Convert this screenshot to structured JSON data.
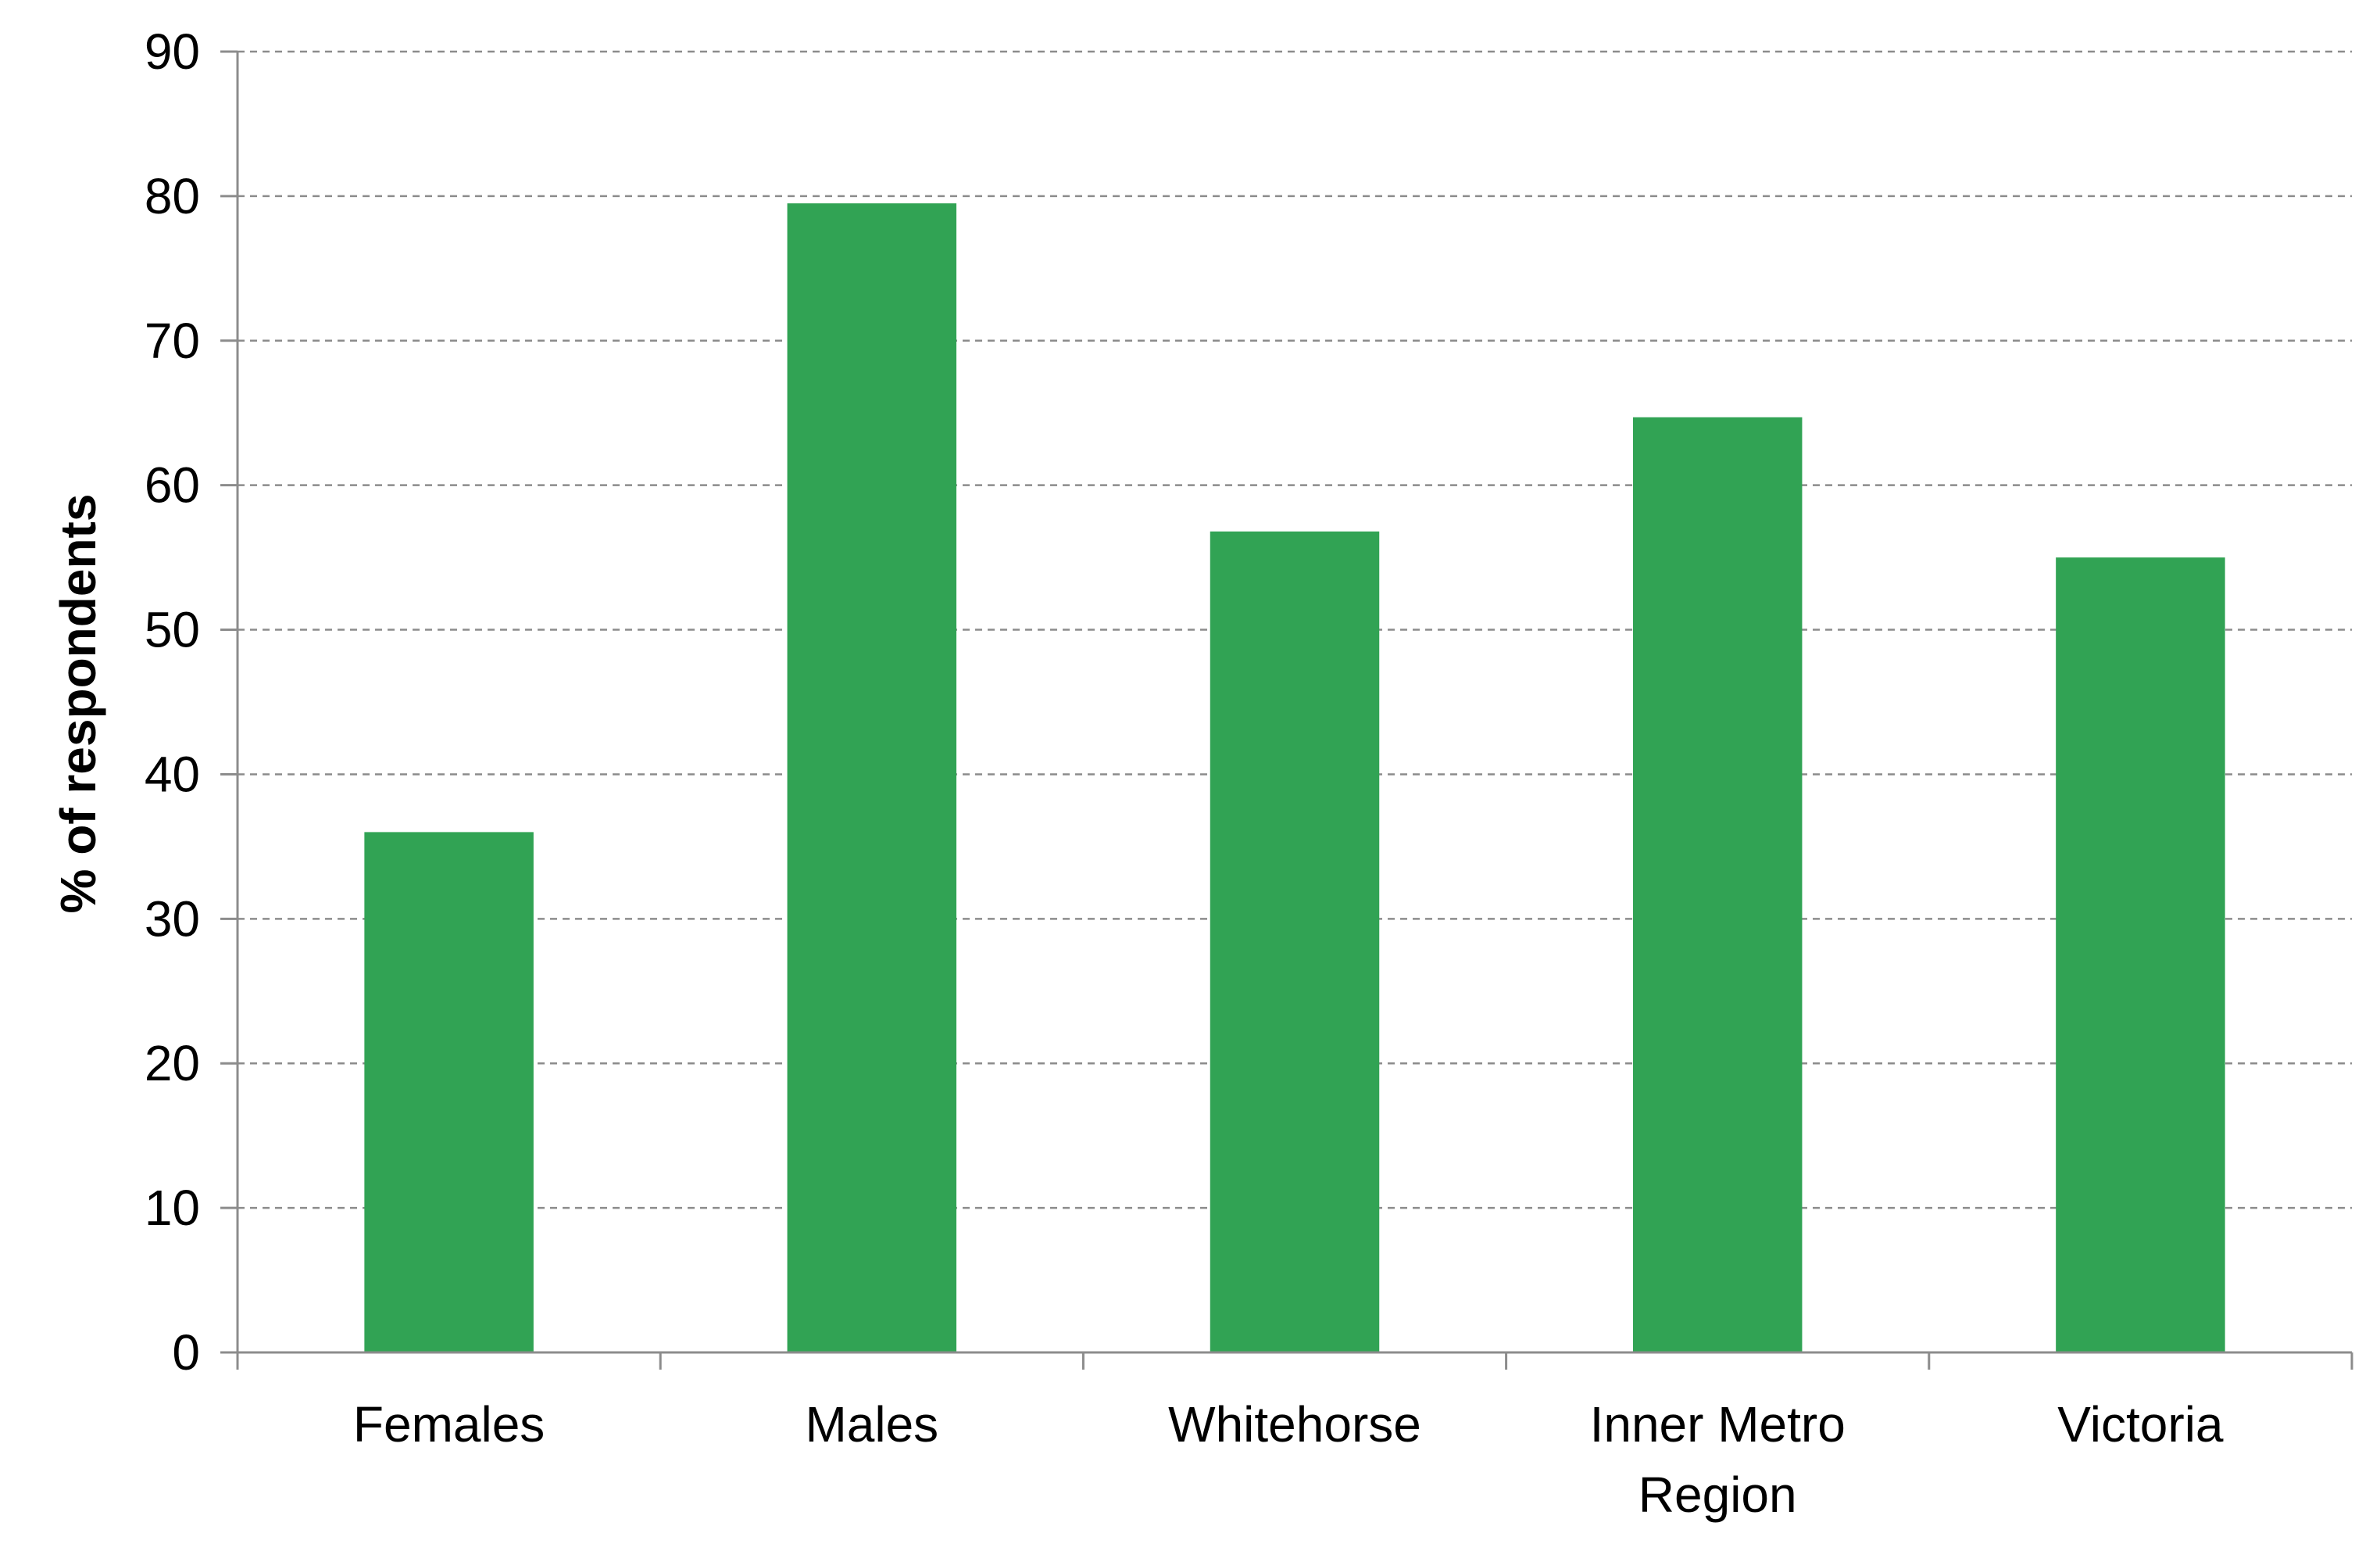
{
  "chart_data": {
    "type": "bar",
    "title": "",
    "xlabel": "",
    "ylabel": "% of respondents",
    "categories": [
      [
        "Females"
      ],
      [
        "Males"
      ],
      [
        "Whitehorse"
      ],
      [
        "Inner Metro",
        "Region"
      ],
      [
        "Victoria"
      ]
    ],
    "values": [
      36.0,
      79.5,
      56.8,
      64.7,
      55.0
    ],
    "ylim": [
      0,
      90
    ],
    "yticks": [
      "0",
      "10",
      "20",
      "30",
      "40",
      "50",
      "60",
      "70",
      "80",
      "90"
    ],
    "grid": "horizontal dashed",
    "legend": "none",
    "colors": {
      "bar": "#31a354",
      "grid": "#8c8c8c",
      "axis": "#8c8c8c"
    }
  }
}
